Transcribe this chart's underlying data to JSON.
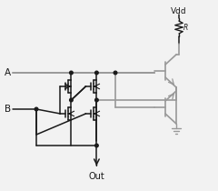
{
  "bg_color": "#f2f2f2",
  "line_dark": "#1a1a1a",
  "line_gray": "#999999",
  "text_color": "#1a1a1a",
  "vdd_label": "Vdd",
  "r_label": "R",
  "a_label": "A",
  "b_label": "B",
  "out_label": "Out",
  "figsize": [
    2.4,
    2.1
  ],
  "dpi": 100
}
